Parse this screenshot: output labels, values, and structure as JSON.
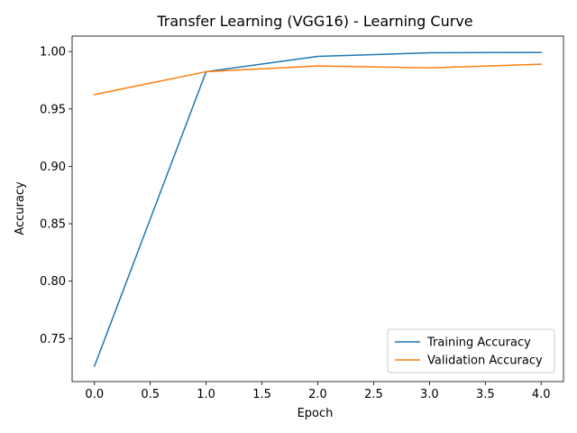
{
  "chart_data": {
    "type": "line",
    "title": "Transfer Learning (VGG16) - Learning Curve",
    "xlabel": "Epoch",
    "ylabel": "Accuracy",
    "x": [
      0,
      1,
      2,
      3,
      4
    ],
    "xlim": [
      -0.2,
      4.2
    ],
    "ylim": [
      0.7125,
      1.0135
    ],
    "xticks": [
      "0.0",
      "0.5",
      "1.0",
      "1.5",
      "2.0",
      "2.5",
      "3.0",
      "3.5",
      "4.0"
    ],
    "xtick_values": [
      0,
      0.5,
      1,
      1.5,
      2,
      2.5,
      3,
      3.5,
      4
    ],
    "yticks": [
      "0.75",
      "0.80",
      "0.85",
      "0.90",
      "0.95",
      "1.00"
    ],
    "ytick_values": [
      0.75,
      0.8,
      0.85,
      0.9,
      0.95,
      1.0
    ],
    "grid": false,
    "legend_position": "lower-right",
    "series": [
      {
        "name": "Training Accuracy",
        "values": [
          0.7259,
          0.9825,
          0.9958,
          0.999,
          0.9993
        ],
        "color": "#1f77b4"
      },
      {
        "name": "Validation Accuracy",
        "values": [
          0.9625,
          0.9825,
          0.9875,
          0.9858,
          0.989
        ],
        "color": "#ff7f0e"
      }
    ]
  }
}
